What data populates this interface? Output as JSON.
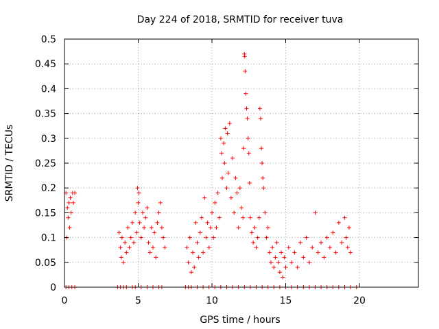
{
  "chart_data": {
    "type": "scatter",
    "title": "Day 224 of 2018, SRMTID for receiver tuva",
    "xlabel": "GPS time / hours",
    "ylabel": "SRMTID / TECUs",
    "xlim": [
      0,
      24
    ],
    "ylim": [
      0,
      0.5
    ],
    "xticks": [
      "0",
      "5",
      "10",
      "15",
      "20"
    ],
    "yticks": [
      "0",
      "0.05",
      "0.1",
      "0.15",
      "0.2",
      "0.25",
      "0.3",
      "0.35",
      "0.4",
      "0.45",
      "0.5"
    ],
    "grid": true,
    "marker": "plus",
    "color": "#ff0000",
    "series": [
      {
        "points": [
          [
            0.1,
            0.19
          ],
          [
            0.15,
            0.1
          ],
          [
            0.2,
            0.16
          ],
          [
            0.25,
            0.14
          ],
          [
            0.3,
            0.17
          ],
          [
            0.35,
            0.12
          ],
          [
            0.4,
            0.18
          ],
          [
            0.45,
            0.15
          ],
          [
            0.55,
            0.19
          ],
          [
            0.6,
            0.17
          ],
          [
            0.7,
            0.19
          ],
          [
            3.7,
            0.11
          ],
          [
            3.8,
            0.08
          ],
          [
            3.85,
            0.06
          ],
          [
            3.9,
            0.1
          ],
          [
            4.0,
            0.05
          ],
          [
            4.1,
            0.09
          ],
          [
            4.2,
            0.07
          ],
          [
            4.3,
            0.12
          ],
          [
            4.4,
            0.08
          ],
          [
            4.5,
            0.1
          ],
          [
            4.6,
            0.13
          ],
          [
            4.7,
            0.09
          ],
          [
            4.8,
            0.15
          ],
          [
            4.9,
            0.11
          ],
          [
            4.95,
            0.2
          ],
          [
            5.0,
            0.17
          ],
          [
            5.05,
            0.19
          ],
          [
            5.1,
            0.13
          ],
          [
            5.2,
            0.1
          ],
          [
            5.3,
            0.15
          ],
          [
            5.4,
            0.12
          ],
          [
            5.5,
            0.14
          ],
          [
            5.6,
            0.16
          ],
          [
            5.7,
            0.09
          ],
          [
            5.8,
            0.07
          ],
          [
            5.9,
            0.12
          ],
          [
            6.0,
            0.08
          ],
          [
            6.1,
            0.11
          ],
          [
            6.2,
            0.06
          ],
          [
            6.3,
            0.13
          ],
          [
            6.4,
            0.15
          ],
          [
            6.5,
            0.17
          ],
          [
            6.6,
            0.12
          ],
          [
            6.7,
            0.1
          ],
          [
            6.8,
            0.08
          ],
          [
            8.3,
            0.08
          ],
          [
            8.4,
            0.05
          ],
          [
            8.5,
            0.1
          ],
          [
            8.6,
            0.03
          ],
          [
            8.7,
            0.07
          ],
          [
            8.8,
            0.04
          ],
          [
            8.9,
            0.13
          ],
          [
            9.0,
            0.09
          ],
          [
            9.1,
            0.06
          ],
          [
            9.2,
            0.11
          ],
          [
            9.3,
            0.14
          ],
          [
            9.4,
            0.07
          ],
          [
            9.5,
            0.18
          ],
          [
            9.6,
            0.1
          ],
          [
            9.7,
            0.13
          ],
          [
            9.8,
            0.08
          ],
          [
            9.9,
            0.12
          ],
          [
            10.0,
            0.15
          ],
          [
            10.1,
            0.1
          ],
          [
            10.2,
            0.17
          ],
          [
            10.3,
            0.12
          ],
          [
            10.4,
            0.19
          ],
          [
            10.5,
            0.14
          ],
          [
            10.6,
            0.3
          ],
          [
            10.65,
            0.27
          ],
          [
            10.7,
            0.22
          ],
          [
            10.8,
            0.29
          ],
          [
            10.85,
            0.25
          ],
          [
            10.9,
            0.32
          ],
          [
            11.0,
            0.2
          ],
          [
            11.05,
            0.31
          ],
          [
            11.1,
            0.23
          ],
          [
            11.2,
            0.33
          ],
          [
            11.3,
            0.18
          ],
          [
            11.4,
            0.26
          ],
          [
            11.5,
            0.15
          ],
          [
            11.6,
            0.22
          ],
          [
            11.7,
            0.19
          ],
          [
            11.8,
            0.12
          ],
          [
            11.9,
            0.2
          ],
          [
            12.0,
            0.16
          ],
          [
            12.1,
            0.14
          ],
          [
            12.15,
            0.28
          ],
          [
            12.2,
            0.47
          ],
          [
            12.22,
            0.465
          ],
          [
            12.25,
            0.435
          ],
          [
            12.3,
            0.39
          ],
          [
            12.35,
            0.36
          ],
          [
            12.4,
            0.34
          ],
          [
            12.45,
            0.3
          ],
          [
            12.5,
            0.27
          ],
          [
            12.55,
            0.21
          ],
          [
            12.6,
            0.14
          ],
          [
            12.7,
            0.11
          ],
          [
            12.8,
            0.09
          ],
          [
            12.9,
            0.12
          ],
          [
            13.0,
            0.08
          ],
          [
            13.1,
            0.1
          ],
          [
            13.2,
            0.14
          ],
          [
            13.25,
            0.36
          ],
          [
            13.3,
            0.34
          ],
          [
            13.35,
            0.28
          ],
          [
            13.4,
            0.25
          ],
          [
            13.45,
            0.22
          ],
          [
            13.5,
            0.2
          ],
          [
            13.6,
            0.15
          ],
          [
            13.7,
            0.1
          ],
          [
            13.8,
            0.12
          ],
          [
            13.9,
            0.07
          ],
          [
            14.0,
            0.05
          ],
          [
            14.1,
            0.08
          ],
          [
            14.2,
            0.04
          ],
          [
            14.3,
            0.06
          ],
          [
            14.4,
            0.09
          ],
          [
            14.5,
            0.05
          ],
          [
            14.6,
            0.03
          ],
          [
            14.7,
            0.07
          ],
          [
            14.8,
            0.02
          ],
          [
            14.9,
            0.06
          ],
          [
            15.0,
            0.04
          ],
          [
            15.2,
            0.08
          ],
          [
            15.4,
            0.05
          ],
          [
            15.6,
            0.07
          ],
          [
            15.8,
            0.04
          ],
          [
            16.0,
            0.09
          ],
          [
            16.2,
            0.06
          ],
          [
            16.4,
            0.1
          ],
          [
            16.6,
            0.05
          ],
          [
            16.8,
            0.08
          ],
          [
            17.0,
            0.15
          ],
          [
            17.2,
            0.07
          ],
          [
            17.4,
            0.09
          ],
          [
            17.6,
            0.06
          ],
          [
            17.8,
            0.1
          ],
          [
            18.0,
            0.08
          ],
          [
            18.2,
            0.11
          ],
          [
            18.4,
            0.07
          ],
          [
            18.6,
            0.13
          ],
          [
            18.8,
            0.09
          ],
          [
            19.0,
            0.14
          ],
          [
            19.1,
            0.1
          ],
          [
            19.2,
            0.08
          ],
          [
            19.3,
            0.12
          ],
          [
            19.4,
            0.07
          ],
          [
            0.1,
            0
          ],
          [
            0.3,
            0
          ],
          [
            0.5,
            0
          ],
          [
            0.7,
            0
          ],
          [
            3.6,
            0
          ],
          [
            3.8,
            0
          ],
          [
            4.0,
            0
          ],
          [
            4.2,
            0
          ],
          [
            4.6,
            0
          ],
          [
            4.8,
            0
          ],
          [
            5.2,
            0
          ],
          [
            5.6,
            0
          ],
          [
            6.0,
            0
          ],
          [
            6.4,
            0
          ],
          [
            6.6,
            0
          ],
          [
            8.2,
            0
          ],
          [
            8.4,
            0
          ],
          [
            8.6,
            0
          ],
          [
            9.0,
            0
          ],
          [
            9.4,
            0
          ],
          [
            9.8,
            0
          ],
          [
            10.2,
            0
          ],
          [
            10.6,
            0
          ],
          [
            11.0,
            0
          ],
          [
            11.4,
            0
          ],
          [
            11.8,
            0
          ],
          [
            12.2,
            0
          ],
          [
            12.6,
            0
          ],
          [
            13.0,
            0
          ],
          [
            13.4,
            0
          ],
          [
            13.8,
            0
          ],
          [
            14.2,
            0
          ],
          [
            14.6,
            0
          ],
          [
            15.0,
            0
          ],
          [
            15.4,
            0
          ],
          [
            15.8,
            0
          ],
          [
            16.2,
            0
          ],
          [
            16.6,
            0
          ],
          [
            17.0,
            0
          ],
          [
            17.4,
            0
          ],
          [
            17.8,
            0
          ],
          [
            18.2,
            0
          ],
          [
            18.6,
            0
          ],
          [
            19.0,
            0
          ],
          [
            19.4,
            0
          ],
          [
            19.8,
            0
          ]
        ]
      }
    ]
  }
}
